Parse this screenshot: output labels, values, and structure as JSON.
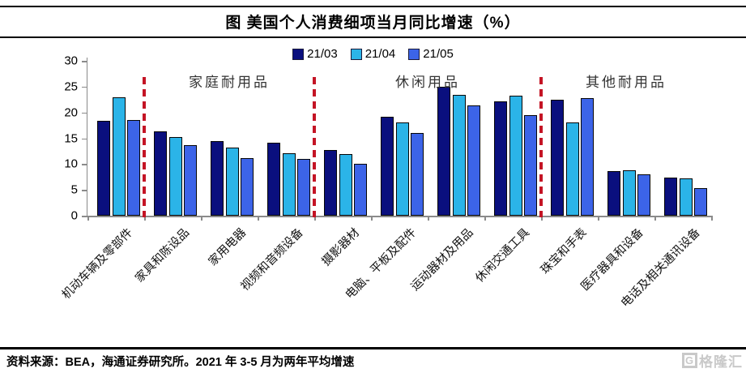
{
  "header": {
    "title": "图 美国个人消费细项当月同比增速（%）"
  },
  "footer": {
    "source_note": "资料来源：BEA，海通证券研究所。2021 年 3-5 月为两年平均增速",
    "watermark_letter": "G",
    "watermark_text": "格隆汇"
  },
  "chart_data": {
    "type": "bar",
    "title": "图 美国个人消费细项当月同比增速（%）",
    "categories": [
      "机动车辆及零部件",
      "家具和陈设品",
      "家用电器",
      "视频和音频设备",
      "摄影器材",
      "电脑、平板及配件",
      "运动器材及用品",
      "休闲交通工具",
      "珠宝和手表",
      "医疗器具和设备",
      "电话及相关通讯设备"
    ],
    "series": [
      {
        "name": "21/03",
        "color": "#0A0F7E",
        "values": [
          18.4,
          16.4,
          14.5,
          14.1,
          12.8,
          19.1,
          24.9,
          22.1,
          22.5,
          8.6,
          7.4
        ]
      },
      {
        "name": "21/04",
        "color": "#2BB4E8",
        "values": [
          23.0,
          15.3,
          13.2,
          12.1,
          11.9,
          18.0,
          23.4,
          23.3,
          18.1,
          8.8,
          7.3
        ]
      },
      {
        "name": "21/05",
        "color": "#3C64E8",
        "values": [
          18.6,
          13.6,
          11.2,
          11.0,
          10.0,
          16.0,
          21.4,
          19.5,
          22.7,
          8.0,
          5.4
        ]
      }
    ],
    "ylabel": "",
    "xlabel": "",
    "ylim": [
      0,
      30
    ],
    "yticks": [
      0,
      5,
      10,
      15,
      20,
      25,
      30
    ],
    "grid": false,
    "legend_position": "top",
    "separator_color": "#C41425",
    "separators_after_category": [
      0,
      3,
      7
    ],
    "section_labels": [
      {
        "text": "家庭耐用品",
        "from": 1,
        "to": 3
      },
      {
        "text": "休闲用品",
        "from": 4,
        "to": 7
      },
      {
        "text": "其他耐用品",
        "from": 8,
        "to": 10
      }
    ]
  }
}
